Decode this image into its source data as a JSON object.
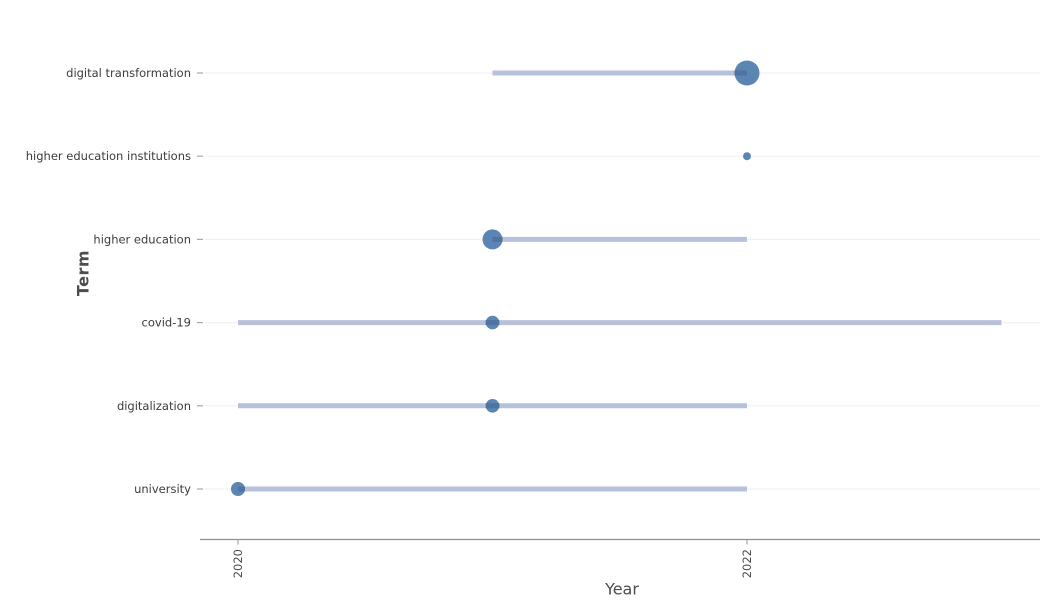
{
  "figure": {
    "background": "#ffffff"
  },
  "chart_data": {
    "type": "scatter",
    "subtype": "trend-topics-lollipop-timeline",
    "title": "",
    "xlabel": "Year",
    "ylabel": "Term",
    "grid": "horizontal-only",
    "legend": "none",
    "x_ticks": [
      {
        "label": "2020",
        "year": 2020
      },
      {
        "label": "2022",
        "year": 2022
      }
    ],
    "x_range": [
      2019.87,
      2023.15
    ],
    "tick_label_rotation_deg": -90,
    "colors": {
      "dot": "#5b85b3",
      "line": "#b8c1dc",
      "line_over_dot": "#50739f",
      "grid": "#f1f1f4",
      "axis": "#8f8f8f",
      "tick": "#a8a8a8",
      "tick_label": "#4a4a4a",
      "category_label": "#3c3c3c"
    },
    "series": [
      {
        "term": "digital transformation",
        "line_start_year": 2021,
        "line_end_year": 2022,
        "dot_year": 2022,
        "dot_radius_px": 12.5
      },
      {
        "term": "higher education institutions",
        "line_start_year": 2022,
        "line_end_year": 2022,
        "dot_year": 2022,
        "dot_radius_px": 4
      },
      {
        "term": "higher education",
        "line_start_year": 2021,
        "line_end_year": 2022,
        "dot_year": 2021,
        "dot_radius_px": 10
      },
      {
        "term": "covid-19",
        "line_start_year": 2020,
        "line_end_year": 2023,
        "dot_year": 2021,
        "dot_radius_px": 6.8
      },
      {
        "term": "digitalization",
        "line_start_year": 2020,
        "line_end_year": 2022,
        "dot_year": 2021,
        "dot_radius_px": 6.8
      },
      {
        "term": "university",
        "line_start_year": 2020,
        "line_end_year": 2022,
        "dot_year": 2020,
        "dot_radius_px": 7
      }
    ]
  }
}
